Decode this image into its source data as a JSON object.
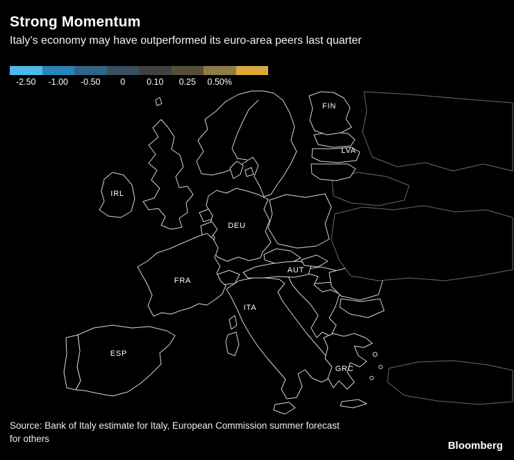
{
  "brand": "Bloomberg",
  "chart_data": {
    "type": "choropleth",
    "region": "Europe",
    "title": "Strong Momentum",
    "subtitle": "Italy’s economy may have outperformed its euro-area peers last quarter",
    "unit": "%",
    "legend": {
      "boundary_labels": [
        "-2.50",
        "-1.00",
        "-0.50",
        "0",
        "0.10",
        "0.25",
        "0.50%"
      ],
      "stop_colors": [
        "#4db9ea",
        "#2a85b8",
        "#2f6588",
        "#37505e",
        "#414144",
        "#56503a",
        "#8d7c45",
        "#d9a93c"
      ]
    },
    "countries": {
      "IRL": {
        "label": "IRL",
        "color": "#4db9ea",
        "legend_bucket": 0
      },
      "LTU": {
        "label": "",
        "color": "#4db9ea",
        "legend_bucket": 0
      },
      "LVA": {
        "label": "LVA",
        "color": "#3f719a",
        "legend_bucket": 2
      },
      "PRT": {
        "label": "",
        "color": "#3e6c8e",
        "legend_bucket": 2
      },
      "BEL": {
        "label": "",
        "color": "#40708f",
        "legend_bucket": 2
      },
      "FIN": {
        "label": "FIN",
        "color": "#3d464e",
        "legend_bucket": 3
      },
      "DEU": {
        "label": "DEU",
        "color": "#3c4045",
        "legend_bucket": 4
      },
      "GRC": {
        "label": "GRC",
        "color": "#54585b",
        "legend_bucket": 4
      },
      "FRA": {
        "label": "FRA",
        "color": "#6b6149",
        "legend_bucket": 5
      },
      "SVK": {
        "label": "",
        "color": "#6f6540",
        "legend_bucket": 5
      },
      "AUT": {
        "label": "AUT",
        "color": "#8d7c45",
        "legend_bucket": 6
      },
      "ESP": {
        "label": "ESP",
        "color": "#9f8d4f",
        "legend_bucket": 6
      },
      "ITA": {
        "label": "ITA",
        "color": "#d9a93c",
        "legend_bucket": 7
      }
    },
    "source_line1": "Source: Bank of Italy estimate for Italy, European Commission summer forecast",
    "source_line2": "for others"
  }
}
